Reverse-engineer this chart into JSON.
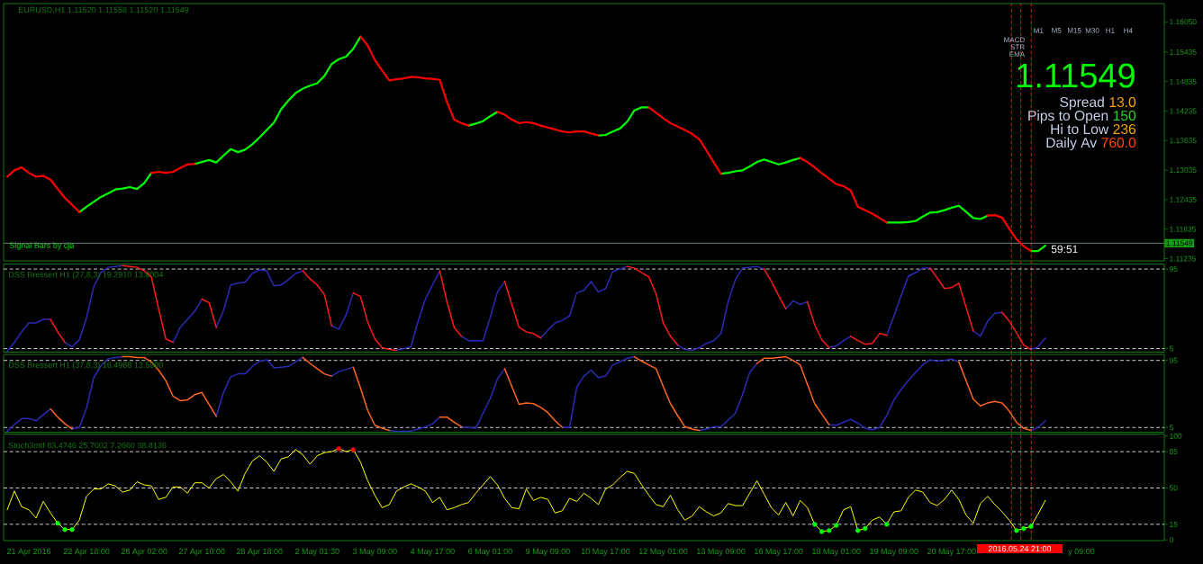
{
  "chart_data": [
    {
      "type": "line",
      "title": "EURUSD,H1 1.11520 1.11558 1.11520 1.11549",
      "ylim": [
        1.1119,
        1.1642
      ],
      "categories": [
        null,
        null,
        null,
        null,
        null,
        null,
        null,
        null,
        null,
        null,
        null,
        null,
        null,
        null,
        null,
        null,
        null,
        null,
        null,
        null,
        null,
        null,
        null,
        null,
        null,
        null,
        null,
        null,
        null,
        null,
        null,
        null,
        null,
        null,
        null,
        null,
        null,
        null,
        null,
        null,
        null,
        null,
        null,
        null,
        null,
        null,
        null,
        null,
        null,
        null,
        null,
        null,
        null,
        null,
        null,
        null,
        null,
        null,
        null,
        null,
        null,
        null,
        null,
        null,
        null,
        null,
        null,
        null,
        null,
        null,
        null,
        null,
        null,
        null,
        null,
        null,
        null,
        null,
        null,
        null,
        null,
        null,
        null,
        null,
        null,
        null,
        null,
        null,
        null,
        null,
        null,
        null,
        null,
        null,
        null,
        null,
        null,
        null,
        null,
        null,
        null,
        null,
        null,
        null,
        null,
        null,
        null,
        null,
        null,
        null,
        null,
        null,
        null,
        null,
        null,
        null,
        null,
        null,
        null,
        null,
        null,
        null,
        null,
        null,
        null,
        null,
        null,
        null,
        null,
        null,
        null,
        null,
        null,
        null,
        null,
        null,
        null,
        null,
        null,
        null,
        null,
        null,
        null,
        null,
        null,
        null,
        null,
        null,
        null,
        null,
        null,
        null,
        null,
        null,
        null,
        null,
        null,
        null,
        null,
        null,
        null
      ],
      "yticks": [
        {
          "value": 1.1605,
          "label": "1.16050"
        },
        {
          "value": 1.15435,
          "label": "1.15435"
        },
        {
          "value": 1.14835,
          "label": "1.14835"
        },
        {
          "value": 1.14235,
          "label": "1.14235"
        },
        {
          "value": 1.13635,
          "label": "1.13635"
        },
        {
          "value": 1.13035,
          "label": "1.13035"
        },
        {
          "value": 1.12435,
          "label": "1.12435"
        },
        {
          "value": 1.11835,
          "label": "1.11835"
        },
        {
          "value": 1.11235,
          "label": "1.11235"
        }
      ],
      "tick_labels": "y",
      "series": [
        {
          "color": "#00ff00",
          "values": [
            null,
            null,
            null,
            null,
            null,
            null,
            null,
            null,
            null,
            null,
            1.1218,
            1.1229,
            1.1239,
            1.1249,
            1.1256,
            1.1264,
            1.1266,
            1.1269,
            1.1265,
            1.1277,
            1.1298,
            null,
            null,
            null,
            null,
            null,
            1.1316,
            1.132,
            1.1324,
            1.1319,
            1.1333,
            1.1346,
            1.134,
            1.1345,
            1.1356,
            1.137,
            1.1385,
            1.14,
            1.1427,
            1.1445,
            1.146,
            1.1469,
            1.1475,
            1.148,
            1.1495,
            1.1519,
            1.1529,
            1.1534,
            1.155,
            1.1575,
            null,
            null,
            null,
            null,
            null,
            null,
            null,
            null,
            null,
            null,
            null,
            null,
            null,
            null,
            1.1394,
            1.1398,
            1.1403,
            1.1413,
            1.1422,
            null,
            null,
            null,
            null,
            null,
            null,
            null,
            null,
            null,
            null,
            null,
            null,
            null,
            1.1374,
            1.1375,
            1.1382,
            1.1388,
            1.1402,
            1.1425,
            1.1431,
            1.1431,
            null,
            null,
            null,
            null,
            null,
            null,
            null,
            null,
            null,
            1.1296,
            1.1298,
            1.1301,
            1.1303,
            1.1311,
            1.132,
            1.1325,
            1.132,
            1.1315,
            1.1319,
            1.1324,
            1.1328,
            null,
            null,
            null,
            null,
            null,
            null,
            null,
            null,
            null,
            null,
            null,
            1.1197,
            1.1197,
            1.1197,
            1.1198,
            1.12,
            1.1209,
            1.1217,
            1.1218,
            1.1222,
            1.1227,
            1.1231,
            1.1219,
            1.1206,
            1.1204,
            1.1211,
            null,
            null,
            null,
            null,
            null,
            1.1139,
            1.1139,
            1.115,
            null,
            null,
            null,
            null,
            null,
            null,
            null,
            null,
            null,
            null,
            null,
            null,
            null,
            null,
            null,
            null
          ]
        },
        {
          "color": "#ff0000",
          "values": [
            1.129,
            1.1303,
            1.1309,
            1.1298,
            1.129,
            1.1292,
            1.1284,
            1.1265,
            1.1247,
            1.1233,
            1.1218,
            null,
            null,
            null,
            null,
            null,
            null,
            null,
            null,
            null,
            1.1298,
            1.13,
            1.1298,
            1.13,
            1.1308,
            1.1315,
            1.1316,
            null,
            null,
            null,
            null,
            null,
            null,
            null,
            null,
            null,
            null,
            null,
            null,
            null,
            null,
            null,
            null,
            null,
            null,
            null,
            null,
            null,
            null,
            1.1575,
            1.1557,
            1.1527,
            1.1506,
            1.1486,
            1.1488,
            1.149,
            1.1493,
            1.1492,
            1.149,
            1.1489,
            1.1487,
            1.1442,
            1.1406,
            1.1399,
            1.1394,
            null,
            null,
            null,
            1.1422,
            1.1416,
            1.1406,
            1.1399,
            1.1401,
            1.1399,
            1.1394,
            1.139,
            1.1386,
            1.1382,
            1.138,
            1.1382,
            1.1382,
            1.1378,
            1.1374,
            null,
            null,
            null,
            null,
            null,
            null,
            1.1431,
            1.142,
            1.1409,
            1.1399,
            1.1392,
            1.1385,
            1.1377,
            1.1366,
            1.1343,
            1.1319,
            1.1296,
            null,
            null,
            null,
            null,
            null,
            null,
            null,
            null,
            null,
            null,
            1.1328,
            1.132,
            1.1309,
            1.1297,
            1.1286,
            1.1275,
            1.1271,
            1.1262,
            1.1229,
            1.1222,
            1.1215,
            1.1206,
            1.1197,
            null,
            null,
            null,
            null,
            null,
            null,
            null,
            null,
            null,
            null,
            null,
            null,
            null,
            1.1211,
            1.1212,
            1.1207,
            1.1184,
            1.1163,
            1.1149,
            1.1139,
            null,
            null,
            null,
            null,
            null,
            null,
            null,
            null,
            null,
            null,
            null,
            null,
            null,
            null,
            null,
            null,
            null,
            null
          ]
        }
      ],
      "ref_lines": [
        {
          "axis": "y",
          "value": 1.11549,
          "label": "1.11549",
          "color": "#6f7f7f"
        }
      ],
      "annotations": [
        "Signal Bars by cja",
        "59:51"
      ]
    },
    {
      "type": "line",
      "title": "DSS Bressert H1 (27,8,3) 19.2910 13.9004",
      "ylim": [
        1,
        100.7
      ],
      "yticks": [
        5,
        95
      ],
      "tick_labels": "y",
      "categories": [
        null,
        null,
        null,
        null,
        null,
        null,
        null,
        null,
        null,
        null,
        null,
        null,
        null,
        null,
        null,
        null,
        null,
        null,
        null,
        null,
        null,
        null,
        null,
        null,
        null,
        null,
        null,
        null,
        null,
        null,
        null,
        null,
        null,
        null,
        null,
        null,
        null,
        null,
        null,
        null,
        null,
        null,
        null,
        null,
        null,
        null,
        null,
        null,
        null,
        null,
        null,
        null,
        null,
        null,
        null,
        null,
        null,
        null,
        null,
        null,
        null,
        null,
        null,
        null,
        null,
        null,
        null,
        null,
        null,
        null,
        null,
        null,
        null,
        null,
        null,
        null,
        null,
        null,
        null,
        null,
        null,
        null,
        null,
        null,
        null,
        null,
        null,
        null,
        null,
        null,
        null,
        null,
        null,
        null,
        null,
        null,
        null,
        null,
        null,
        null,
        null,
        null,
        null,
        null,
        null,
        null,
        null,
        null,
        null,
        null,
        null,
        null,
        null,
        null,
        null,
        null,
        null,
        null,
        null,
        null,
        null,
        null,
        null,
        null,
        null,
        null,
        null,
        null,
        null,
        null,
        null,
        null,
        null,
        null,
        null,
        null,
        null,
        null,
        null,
        null,
        null,
        null,
        null,
        null,
        null,
        null,
        null,
        null,
        null,
        null,
        null,
        null,
        null,
        null,
        null,
        null,
        null,
        null,
        null,
        null,
        null
      ],
      "series": [
        {
          "color": "#2a2ab4",
          "values": [
            2,
            12,
            24,
            34,
            34,
            38,
            38,
            null,
            12,
            7,
            15,
            40,
            75,
            91,
            97,
            98,
            99,
            null,
            null,
            null,
            null,
            null,
            null,
            12,
            29,
            38,
            47,
            61,
            null,
            29,
            48,
            77,
            79,
            80,
            90,
            94,
            93,
            76,
            77,
            83,
            90,
            93,
            null,
            null,
            null,
            31,
            27,
            43,
            68,
            null,
            null,
            null,
            null,
            null,
            3,
            5,
            7,
            36,
            61,
            77,
            93,
            null,
            null,
            19,
            14,
            14,
            14,
            40,
            69,
            81,
            null,
            null,
            null,
            null,
            17,
            26,
            34,
            37,
            42,
            68,
            71,
            81,
            69,
            73,
            92,
            95,
            98,
            null,
            null,
            null,
            null,
            null,
            null,
            9,
            4,
            3,
            6,
            11,
            14,
            22,
            58,
            83,
            96,
            97,
            98,
            95,
            null,
            null,
            50,
            59,
            55,
            58,
            null,
            null,
            6,
            8,
            14,
            19,
            null,
            null,
            null,
            null,
            20,
            42,
            65,
            87,
            91,
            96,
            96,
            null,
            null,
            null,
            null,
            null,
            25,
            19,
            36,
            45,
            46,
            null,
            null,
            null,
            4,
            7,
            17,
            null,
            null,
            null,
            null,
            null,
            null,
            null,
            null,
            null,
            null,
            null,
            null,
            null,
            null,
            null,
            null
          ]
        },
        {
          "color": "#ff1a1a",
          "values": [
            null,
            null,
            null,
            null,
            null,
            null,
            38,
            24,
            12,
            null,
            null,
            null,
            null,
            null,
            null,
            null,
            99,
            98,
            97,
            93,
            86,
            50,
            16,
            12,
            null,
            null,
            null,
            61,
            57,
            29,
            null,
            null,
            null,
            null,
            null,
            null,
            null,
            null,
            null,
            null,
            null,
            93,
            84,
            77,
            66,
            31,
            null,
            null,
            68,
            64,
            35,
            16,
            6,
            4,
            3,
            null,
            null,
            null,
            null,
            null,
            93,
            58,
            29,
            19,
            null,
            null,
            null,
            null,
            null,
            81,
            55,
            29,
            24,
            22,
            17,
            null,
            null,
            null,
            null,
            null,
            null,
            null,
            null,
            null,
            null,
            null,
            98,
            96,
            91,
            86,
            67,
            34,
            19,
            9,
            null,
            null,
            null,
            null,
            null,
            null,
            null,
            null,
            null,
            null,
            null,
            95,
            81,
            65,
            50,
            null,
            null,
            58,
            32,
            15,
            6,
            null,
            null,
            19,
            14,
            10,
            11,
            22,
            20,
            null,
            null,
            null,
            null,
            null,
            96,
            85,
            73,
            74,
            79,
            52,
            25,
            null,
            null,
            null,
            46,
            36,
            23,
            9,
            4,
            null,
            null,
            null,
            null,
            null,
            null,
            null,
            null,
            null,
            null,
            null,
            null,
            null,
            null,
            null,
            null,
            null,
            null
          ]
        }
      ],
      "ref_lines": [
        {
          "axis": "y",
          "value": 95,
          "color": "#c8c8c8",
          "line_style": "dashed"
        },
        {
          "axis": "y",
          "value": 5,
          "color": "#c8c8c8",
          "line_style": "dashed"
        }
      ]
    },
    {
      "type": "line",
      "title": "DSS Bressert H1 (37,8,3) 16.4988 13.5900",
      "ylim": [
        -1.3,
        103.1
      ],
      "yticks": [
        5,
        95
      ],
      "tick_labels": "y",
      "categories": [
        null,
        null,
        null,
        null,
        null,
        null,
        null,
        null,
        null,
        null,
        null,
        null,
        null,
        null,
        null,
        null,
        null,
        null,
        null,
        null,
        null,
        null,
        null,
        null,
        null,
        null,
        null,
        null,
        null,
        null,
        null,
        null,
        null,
        null,
        null,
        null,
        null,
        null,
        null,
        null,
        null,
        null,
        null,
        null,
        null,
        null,
        null,
        null,
        null,
        null,
        null,
        null,
        null,
        null,
        null,
        null,
        null,
        null,
        null,
        null,
        null,
        null,
        null,
        null,
        null,
        null,
        null,
        null,
        null,
        null,
        null,
        null,
        null,
        null,
        null,
        null,
        null,
        null,
        null,
        null,
        null,
        null,
        null,
        null,
        null,
        null,
        null,
        null,
        null,
        null,
        null,
        null,
        null,
        null,
        null,
        null,
        null,
        null,
        null,
        null,
        null,
        null,
        null,
        null,
        null,
        null,
        null,
        null,
        null,
        null,
        null,
        null,
        null,
        null,
        null,
        null,
        null,
        null,
        null,
        null,
        null,
        null,
        null,
        null,
        null,
        null,
        null,
        null,
        null,
        null,
        null,
        null,
        null,
        null,
        null,
        null,
        null,
        null,
        null,
        null,
        null,
        null,
        null,
        null,
        null,
        null,
        null,
        null,
        null,
        null,
        null,
        null,
        null,
        null,
        null,
        null,
        null,
        null,
        null,
        null,
        null
      ],
      "series": [
        {
          "color": "#2a2ab4",
          "values": [
            0,
            9,
            17,
            17,
            14,
            22,
            30,
            null,
            null,
            3,
            5,
            31,
            72,
            88,
            97,
            99,
            100,
            null,
            null,
            null,
            null,
            null,
            null,
            null,
            null,
            null,
            null,
            null,
            null,
            20,
            52,
            73,
            77,
            77,
            87,
            94,
            96,
            85,
            86,
            87,
            93,
            99,
            null,
            null,
            null,
            74,
            80,
            83,
            86,
            null,
            null,
            null,
            null,
            1,
            0,
            0,
            0,
            3,
            6,
            10,
            19,
            null,
            null,
            6,
            5,
            4,
            24,
            44,
            70,
            84,
            null,
            null,
            null,
            null,
            null,
            null,
            null,
            5,
            5,
            59,
            74,
            82,
            72,
            74,
            89,
            93,
            98,
            100,
            null,
            null,
            null,
            null,
            null,
            null,
            null,
            null,
            1,
            3,
            6,
            6,
            15,
            24,
            49,
            79,
            91,
            null,
            null,
            null,
            null,
            null,
            null,
            null,
            null,
            null,
            9,
            8,
            12,
            16,
            11,
            4,
            2,
            5,
            21,
            42,
            56,
            68,
            79,
            89,
            96,
            94,
            95,
            97,
            93,
            null,
            null,
            null,
            null,
            null,
            null,
            null,
            null,
            null,
            1,
            5,
            14,
            null,
            null,
            null,
            null,
            null,
            null,
            null,
            null,
            null,
            null,
            null,
            null,
            null,
            null,
            null,
            null
          ]
        },
        {
          "color": "#ff6420",
          "values": [
            null,
            null,
            null,
            null,
            null,
            null,
            30,
            19,
            10,
            3,
            null,
            null,
            null,
            null,
            null,
            null,
            100,
            100,
            99,
            99,
            93,
            82,
            68,
            47,
            41,
            42,
            49,
            52,
            36,
            20,
            null,
            null,
            null,
            null,
            null,
            null,
            null,
            null,
            null,
            null,
            null,
            99,
            91,
            84,
            77,
            74,
            null,
            null,
            86,
            58,
            28,
            8,
            4,
            1,
            null,
            null,
            null,
            null,
            null,
            null,
            19,
            19,
            12,
            6,
            null,
            null,
            null,
            null,
            null,
            84,
            60,
            36,
            38,
            37,
            32,
            25,
            14,
            5,
            null,
            null,
            null,
            null,
            null,
            null,
            null,
            null,
            null,
            100,
            94,
            89,
            84,
            60,
            37,
            21,
            6,
            3,
            1,
            null,
            null,
            null,
            null,
            null,
            null,
            null,
            91,
            98,
            98,
            99,
            100,
            95,
            89,
            63,
            37,
            23,
            9,
            null,
            null,
            null,
            null,
            null,
            null,
            null,
            null,
            null,
            null,
            null,
            null,
            null,
            null,
            null,
            null,
            null,
            93,
            68,
            43,
            34,
            38,
            40,
            38,
            27,
            12,
            4,
            1,
            null,
            null,
            null,
            null,
            null,
            null,
            null,
            null,
            null,
            null,
            null,
            null,
            null,
            null,
            null,
            null,
            null,
            null
          ]
        }
      ],
      "ref_lines": [
        {
          "axis": "y",
          "value": 95,
          "color": "#c8c8c8",
          "line_style": "dashed"
        },
        {
          "axis": "y",
          "value": 5,
          "color": "#c8c8c8",
          "line_style": "dashed"
        }
      ]
    },
    {
      "type": "line",
      "title": "Stoch3mtf 83.4746 25.7002 7.2660 38.8136",
      "ylim": [
        -0.7,
        102
      ],
      "yticks": [
        0,
        15,
        50,
        85,
        100
      ],
      "categories": [
        null,
        null,
        null,
        "21 Apr 2016",
        null,
        null,
        null,
        null,
        null,
        null,
        null,
        "22 Apr 18:00",
        null,
        null,
        null,
        null,
        null,
        null,
        null,
        "26 Apr 02:00",
        null,
        null,
        null,
        null,
        null,
        null,
        null,
        "27 Apr 10:00",
        null,
        null,
        null,
        null,
        null,
        null,
        null,
        "28 Apr 18:00",
        null,
        null,
        null,
        null,
        null,
        null,
        null,
        "2 May 01:30",
        null,
        null,
        null,
        null,
        null,
        null,
        null,
        "3 May 09:00",
        null,
        null,
        null,
        null,
        null,
        null,
        null,
        "4 May 17:00",
        null,
        null,
        null,
        null,
        null,
        null,
        null,
        "6 May 01:00",
        null,
        null,
        null,
        null,
        null,
        null,
        null,
        "9 May 09:00",
        null,
        null,
        null,
        null,
        null,
        null,
        null,
        "10 May 17:00",
        null,
        null,
        null,
        null,
        null,
        null,
        null,
        "12 May 01:00",
        null,
        null,
        null,
        null,
        null,
        null,
        null,
        "13 May 09:00",
        null,
        null,
        null,
        null,
        null,
        null,
        null,
        "16 May 17:00",
        null,
        null,
        null,
        null,
        null,
        null,
        null,
        "18 May 01:00",
        null,
        null,
        null,
        null,
        null,
        null,
        null,
        "19 May 09:00",
        null,
        null,
        null,
        null,
        null,
        null,
        null,
        "20 May 17:00",
        null,
        null,
        null,
        null,
        null,
        null,
        null,
        null,
        null,
        null,
        null,
        null,
        null,
        null,
        null,
        null,
        null,
        "y 09:00",
        null,
        null,
        null,
        null,
        null,
        null,
        null,
        null,
        null,
        null,
        null
      ],
      "series": [
        {
          "type": "scatter",
          "color": "#00ff00",
          "values": [
            null,
            null,
            null,
            null,
            null,
            null,
            null,
            16,
            10,
            10,
            null,
            null,
            null,
            null,
            null,
            null,
            null,
            null,
            null,
            null,
            null,
            null,
            null,
            null,
            null,
            null,
            null,
            null,
            null,
            null,
            null,
            null,
            null,
            null,
            null,
            null,
            null,
            null,
            null,
            null,
            null,
            null,
            null,
            null,
            null,
            null,
            null,
            null,
            null,
            null,
            null,
            null,
            null,
            null,
            null,
            null,
            null,
            null,
            null,
            null,
            null,
            null,
            null,
            null,
            null,
            null,
            null,
            null,
            null,
            null,
            null,
            null,
            null,
            null,
            null,
            null,
            null,
            null,
            null,
            null,
            null,
            null,
            null,
            null,
            null,
            null,
            null,
            null,
            null,
            null,
            null,
            null,
            null,
            null,
            null,
            null,
            null,
            null,
            null,
            null,
            null,
            null,
            null,
            null,
            null,
            null,
            null,
            null,
            null,
            null,
            null,
            null,
            15,
            8,
            9,
            14,
            null,
            null,
            9,
            11,
            null,
            null,
            15,
            null,
            null,
            null,
            null,
            null,
            null,
            null,
            null,
            null,
            null,
            null,
            null,
            null,
            null,
            null,
            null,
            null,
            9,
            11,
            13,
            null,
            null,
            null,
            null,
            null,
            null,
            null,
            null,
            null,
            null,
            null,
            null,
            null,
            null,
            null,
            null,
            null,
            null
          ]
        },
        {
          "type": "scatter",
          "color": "#ff0000",
          "values": [
            null,
            null,
            null,
            null,
            null,
            null,
            null,
            null,
            null,
            null,
            null,
            null,
            null,
            null,
            null,
            null,
            null,
            null,
            null,
            null,
            null,
            null,
            null,
            null,
            null,
            null,
            null,
            null,
            null,
            null,
            null,
            null,
            null,
            null,
            null,
            null,
            null,
            null,
            null,
            null,
            null,
            null,
            null,
            null,
            null,
            null,
            88,
            null,
            87,
            null,
            null,
            null,
            null,
            null,
            null,
            null,
            null,
            null,
            null,
            null,
            null,
            null,
            null,
            null,
            null,
            null,
            null,
            null,
            null,
            null,
            null,
            null,
            null,
            null,
            null,
            null,
            null,
            null,
            null,
            null,
            null,
            null,
            null,
            null,
            null,
            null,
            null,
            null,
            null,
            null,
            null,
            null,
            null,
            null,
            null,
            null,
            null,
            null,
            null,
            null,
            null,
            null,
            null,
            null,
            null,
            null,
            null,
            null,
            null,
            null,
            null,
            null,
            null,
            null,
            null,
            null,
            null,
            null,
            null,
            null,
            null,
            null,
            null,
            null,
            null,
            null,
            null,
            null,
            null,
            null,
            null,
            null,
            null,
            null,
            null,
            null,
            null,
            null,
            null,
            null,
            null,
            null,
            null,
            null,
            null,
            null,
            null,
            null,
            null,
            null,
            null,
            null,
            null,
            null,
            null,
            null,
            null,
            null,
            null,
            null,
            null
          ]
        },
        {
          "color": "#ffff00",
          "values": [
            29,
            47,
            32,
            29,
            21,
            37,
            26,
            16,
            10,
            10,
            19,
            42,
            49,
            49,
            54,
            52,
            46,
            48,
            56,
            53,
            52,
            39,
            41,
            51,
            51,
            45,
            55,
            55,
            50,
            59,
            63,
            56,
            47,
            64,
            76,
            81,
            75,
            66,
            78,
            80,
            87,
            82,
            73,
            81,
            84,
            85,
            88,
            85,
            87,
            75,
            57,
            43,
            31,
            34,
            47,
            51,
            54,
            51,
            47,
            36,
            41,
            29,
            31,
            34,
            36,
            45,
            53,
            61,
            53,
            40,
            31,
            30,
            49,
            38,
            41,
            39,
            26,
            28,
            40,
            37,
            45,
            40,
            34,
            49,
            53,
            60,
            66,
            64,
            53,
            43,
            34,
            32,
            43,
            29,
            19,
            23,
            32,
            27,
            23,
            26,
            35,
            33,
            33,
            45,
            57,
            44,
            31,
            24,
            36,
            23,
            38,
            31,
            15,
            8,
            9,
            14,
            29,
            32,
            9,
            11,
            19,
            22,
            15,
            27,
            28,
            41,
            48,
            46,
            36,
            33,
            39,
            48,
            39,
            24,
            16,
            35,
            42,
            34,
            27,
            19,
            9,
            11,
            13,
            25,
            38,
            null,
            null,
            null,
            null,
            null,
            null,
            null,
            null,
            null,
            null,
            null,
            null,
            null,
            null,
            null,
            null
          ]
        }
      ],
      "ref_lines": [
        {
          "axis": "y",
          "value": 85,
          "color": "#c8c8c8",
          "line_style": "dashed"
        },
        {
          "axis": "y",
          "value": 50,
          "color": "#c8c8c8",
          "line_style": "dashed"
        },
        {
          "axis": "y",
          "value": 15,
          "color": "#c8c8c8",
          "line_style": "dashed"
        }
      ],
      "annotations": [
        "2016.05.24 21:00"
      ]
    },
    {
      "type": "other",
      "categories": [
        "M1",
        "M5",
        "M15",
        "M30",
        "H1",
        "H4"
      ],
      "y_categories": [
        "MACD",
        "STR",
        "EMA"
      ]
    },
    {
      "type": "other",
      "title": "1.11549",
      "annotations": [
        "Spread",
        "13.0",
        "Pips to Open",
        "150",
        "Hi to Low",
        "236",
        "Daily Av",
        "760.0"
      ],
      "colors": [
        "#ffa500",
        "#32cd32",
        "#ffa500",
        "#ff4500"
      ]
    }
  ]
}
